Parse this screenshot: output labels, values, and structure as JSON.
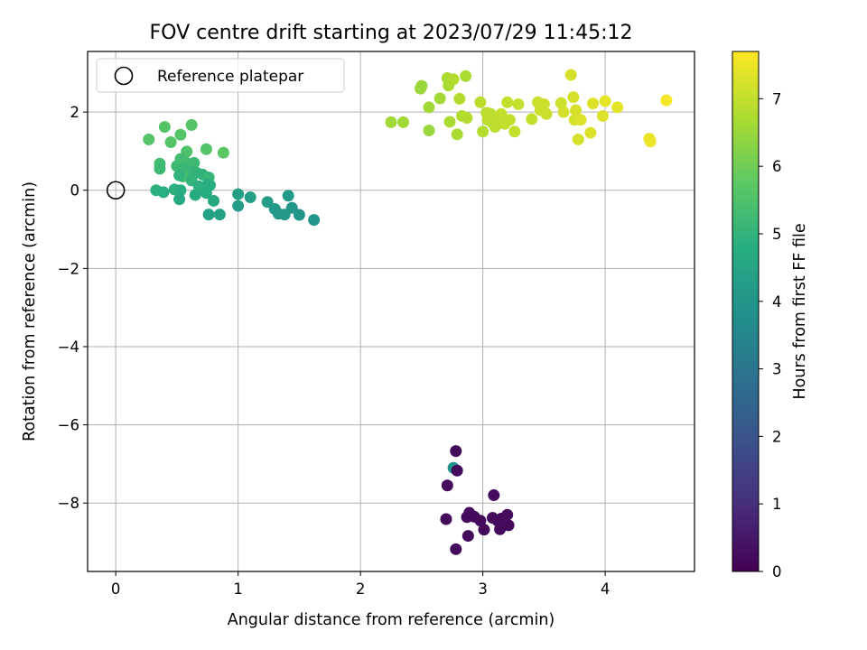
{
  "chart_data": {
    "type": "scatter",
    "title": "FOV centre drift starting at 2023/07/29 11:45:12",
    "xlabel": "Angular distance from reference (arcmin)",
    "ylabel": "Rotation from reference (arcmin)",
    "xlim": [
      -0.23,
      4.73
    ],
    "ylim": [
      -9.75,
      3.55
    ],
    "x_ticks": [
      0,
      1,
      2,
      3,
      4
    ],
    "y_ticks": [
      -8,
      -6,
      -4,
      -2,
      0,
      2
    ],
    "x_tick_labels": [
      "0",
      "1",
      "2",
      "3",
      "4"
    ],
    "y_tick_labels": [
      "−8",
      "−6",
      "−4",
      "−2",
      "0",
      "2"
    ],
    "grid": true,
    "legend": {
      "placement": "top-left",
      "entries": [
        "Reference platepar"
      ]
    },
    "reference_point": {
      "x": 0,
      "y": 0
    },
    "colorbar": {
      "label": "Hours from first FF file",
      "range": [
        0,
        7.7
      ],
      "ticks": [
        0,
        1,
        2,
        3,
        4,
        5,
        6,
        7
      ],
      "tick_labels": [
        "0",
        "1",
        "2",
        "3",
        "4",
        "5",
        "6",
        "7"
      ],
      "colormap": "viridis"
    },
    "points": [
      {
        "x": 2.76,
        "y": -7.1,
        "t": 3.9
      },
      {
        "x": 2.78,
        "y": -6.67,
        "t": 0.2
      },
      {
        "x": 2.79,
        "y": -7.17,
        "t": 0.2
      },
      {
        "x": 2.71,
        "y": -7.55,
        "t": 0.2
      },
      {
        "x": 2.7,
        "y": -8.41,
        "t": 0.2
      },
      {
        "x": 2.87,
        "y": -8.36,
        "t": 0.2
      },
      {
        "x": 2.89,
        "y": -8.25,
        "t": 0.2
      },
      {
        "x": 2.93,
        "y": -8.35,
        "t": 0.2
      },
      {
        "x": 2.98,
        "y": -8.45,
        "t": 0.2
      },
      {
        "x": 3.01,
        "y": -8.68,
        "t": 0.2
      },
      {
        "x": 3.08,
        "y": -8.38,
        "t": 0.2
      },
      {
        "x": 3.12,
        "y": -8.45,
        "t": 0.2
      },
      {
        "x": 3.15,
        "y": -8.4,
        "t": 0.2
      },
      {
        "x": 3.14,
        "y": -8.67,
        "t": 0.2
      },
      {
        "x": 3.2,
        "y": -8.3,
        "t": 0.2
      },
      {
        "x": 3.21,
        "y": -8.57,
        "t": 0.2
      },
      {
        "x": 3.09,
        "y": -7.8,
        "t": 0.2
      },
      {
        "x": 2.88,
        "y": -8.84,
        "t": 0.2
      },
      {
        "x": 2.78,
        "y": -9.18,
        "t": 0.2
      },
      {
        "x": 0.27,
        "y": 1.3,
        "t": 5.6
      },
      {
        "x": 0.4,
        "y": 1.62,
        "t": 5.6
      },
      {
        "x": 0.45,
        "y": 1.23,
        "t": 5.6
      },
      {
        "x": 0.53,
        "y": 1.42,
        "t": 5.6
      },
      {
        "x": 0.62,
        "y": 1.67,
        "t": 5.6
      },
      {
        "x": 0.74,
        "y": 1.05,
        "t": 5.6
      },
      {
        "x": 0.88,
        "y": 0.96,
        "t": 5.7
      },
      {
        "x": 0.58,
        "y": 0.99,
        "t": 5.5
      },
      {
        "x": 0.36,
        "y": 0.68,
        "t": 5.3
      },
      {
        "x": 0.36,
        "y": 0.55,
        "t": 5.2
      },
      {
        "x": 0.5,
        "y": 0.62,
        "t": 5.2
      },
      {
        "x": 0.53,
        "y": 0.8,
        "t": 5.3
      },
      {
        "x": 0.58,
        "y": 0.7,
        "t": 5.3
      },
      {
        "x": 0.64,
        "y": 0.7,
        "t": 5.2
      },
      {
        "x": 0.55,
        "y": 0.55,
        "t": 5.1
      },
      {
        "x": 0.6,
        "y": 0.5,
        "t": 5.1
      },
      {
        "x": 0.66,
        "y": 0.45,
        "t": 5.0
      },
      {
        "x": 0.71,
        "y": 0.4,
        "t": 5.0
      },
      {
        "x": 0.76,
        "y": 0.33,
        "t": 5.1
      },
      {
        "x": 0.55,
        "y": 0.35,
        "t": 5.4
      },
      {
        "x": 0.52,
        "y": 0.38,
        "t": 5.0
      },
      {
        "x": 0.62,
        "y": 0.25,
        "t": 5.0
      },
      {
        "x": 0.68,
        "y": 0.1,
        "t": 4.9
      },
      {
        "x": 0.75,
        "y": 0.15,
        "t": 4.8
      },
      {
        "x": 0.77,
        "y": 0.13,
        "t": 4.8
      },
      {
        "x": 0.48,
        "y": 0.02,
        "t": 4.9
      },
      {
        "x": 0.53,
        "y": 0.0,
        "t": 4.8
      },
      {
        "x": 0.33,
        "y": 0.0,
        "t": 4.9
      },
      {
        "x": 0.39,
        "y": -0.05,
        "t": 4.8
      },
      {
        "x": 0.65,
        "y": -0.12,
        "t": 4.7
      },
      {
        "x": 0.74,
        "y": -0.07,
        "t": 4.7
      },
      {
        "x": 0.8,
        "y": -0.27,
        "t": 4.6
      },
      {
        "x": 0.52,
        "y": -0.23,
        "t": 4.6
      },
      {
        "x": 0.76,
        "y": -0.62,
        "t": 4.4
      },
      {
        "x": 0.85,
        "y": -0.62,
        "t": 4.4
      },
      {
        "x": 1.0,
        "y": -0.1,
        "t": 4.3
      },
      {
        "x": 1.1,
        "y": -0.18,
        "t": 4.3
      },
      {
        "x": 1.0,
        "y": -0.4,
        "t": 4.2
      },
      {
        "x": 1.24,
        "y": -0.3,
        "t": 4.2
      },
      {
        "x": 1.3,
        "y": -0.48,
        "t": 4.1
      },
      {
        "x": 1.33,
        "y": -0.6,
        "t": 4.1
      },
      {
        "x": 1.38,
        "y": -0.62,
        "t": 4.1
      },
      {
        "x": 1.41,
        "y": -0.14,
        "t": 4.1
      },
      {
        "x": 1.44,
        "y": -0.45,
        "t": 4.0
      },
      {
        "x": 1.5,
        "y": -0.63,
        "t": 4.0
      },
      {
        "x": 1.62,
        "y": -0.76,
        "t": 4.0
      },
      {
        "x": 2.25,
        "y": 1.74,
        "t": 6.6
      },
      {
        "x": 2.35,
        "y": 1.74,
        "t": 6.6
      },
      {
        "x": 2.49,
        "y": 2.6,
        "t": 6.5
      },
      {
        "x": 2.5,
        "y": 2.67,
        "t": 6.5
      },
      {
        "x": 2.56,
        "y": 2.12,
        "t": 6.6
      },
      {
        "x": 2.56,
        "y": 1.53,
        "t": 6.5
      },
      {
        "x": 2.65,
        "y": 2.35,
        "t": 6.6
      },
      {
        "x": 2.71,
        "y": 2.87,
        "t": 6.7
      },
      {
        "x": 2.72,
        "y": 2.68,
        "t": 6.7
      },
      {
        "x": 2.76,
        "y": 2.84,
        "t": 6.8
      },
      {
        "x": 2.73,
        "y": 1.75,
        "t": 6.7
      },
      {
        "x": 2.79,
        "y": 1.43,
        "t": 6.7
      },
      {
        "x": 2.81,
        "y": 2.34,
        "t": 6.8
      },
      {
        "x": 2.83,
        "y": 1.9,
        "t": 6.8
      },
      {
        "x": 2.86,
        "y": 2.92,
        "t": 6.7
      },
      {
        "x": 2.87,
        "y": 1.85,
        "t": 6.8
      },
      {
        "x": 2.98,
        "y": 2.25,
        "t": 6.9
      },
      {
        "x": 3.0,
        "y": 1.5,
        "t": 6.8
      },
      {
        "x": 3.03,
        "y": 1.98,
        "t": 6.9
      },
      {
        "x": 3.04,
        "y": 1.8,
        "t": 6.9
      },
      {
        "x": 3.06,
        "y": 1.96,
        "t": 6.9
      },
      {
        "x": 3.08,
        "y": 1.72,
        "t": 6.9
      },
      {
        "x": 3.1,
        "y": 1.62,
        "t": 6.9
      },
      {
        "x": 3.12,
        "y": 1.88,
        "t": 6.9
      },
      {
        "x": 3.15,
        "y": 1.95,
        "t": 7.0
      },
      {
        "x": 3.18,
        "y": 1.7,
        "t": 7.0
      },
      {
        "x": 3.2,
        "y": 2.25,
        "t": 7.0
      },
      {
        "x": 3.22,
        "y": 1.8,
        "t": 7.0
      },
      {
        "x": 3.26,
        "y": 1.5,
        "t": 7.0
      },
      {
        "x": 3.29,
        "y": 2.2,
        "t": 7.0
      },
      {
        "x": 3.4,
        "y": 1.82,
        "t": 7.0
      },
      {
        "x": 3.45,
        "y": 2.25,
        "t": 7.1
      },
      {
        "x": 3.47,
        "y": 2.05,
        "t": 7.1
      },
      {
        "x": 3.5,
        "y": 2.2,
        "t": 7.1
      },
      {
        "x": 3.52,
        "y": 1.95,
        "t": 7.1
      },
      {
        "x": 3.64,
        "y": 2.23,
        "t": 7.1
      },
      {
        "x": 3.66,
        "y": 2.0,
        "t": 7.2
      },
      {
        "x": 3.72,
        "y": 2.95,
        "t": 7.2
      },
      {
        "x": 3.74,
        "y": 2.38,
        "t": 7.2
      },
      {
        "x": 3.75,
        "y": 1.8,
        "t": 7.2
      },
      {
        "x": 3.76,
        "y": 2.05,
        "t": 7.2
      },
      {
        "x": 3.78,
        "y": 1.3,
        "t": 7.2
      },
      {
        "x": 3.8,
        "y": 1.8,
        "t": 7.3
      },
      {
        "x": 3.88,
        "y": 1.47,
        "t": 7.3
      },
      {
        "x": 3.9,
        "y": 2.22,
        "t": 7.3
      },
      {
        "x": 3.98,
        "y": 1.9,
        "t": 7.3
      },
      {
        "x": 4.0,
        "y": 2.28,
        "t": 7.4
      },
      {
        "x": 4.1,
        "y": 2.12,
        "t": 7.4
      },
      {
        "x": 4.36,
        "y": 1.32,
        "t": 7.5
      },
      {
        "x": 4.37,
        "y": 1.25,
        "t": 7.5
      },
      {
        "x": 4.5,
        "y": 2.3,
        "t": 7.6
      }
    ]
  }
}
